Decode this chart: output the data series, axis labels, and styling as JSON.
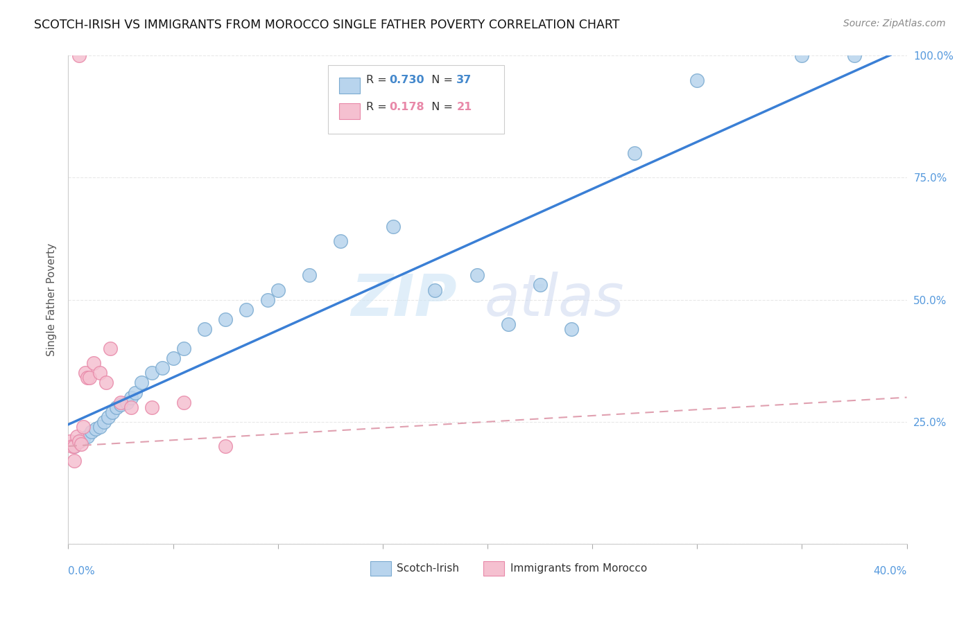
{
  "title": "SCOTCH-IRISH VS IMMIGRANTS FROM MOROCCO SINGLE FATHER POVERTY CORRELATION CHART",
  "source": "Source: ZipAtlas.com",
  "ylabel": "Single Father Poverty",
  "scotch_irish_color": "#b8d4ed",
  "scotch_irish_edge": "#7aaad0",
  "morocco_color": "#f5c0d0",
  "morocco_edge": "#e888a8",
  "blue_line_color": "#3a7fd5",
  "dashed_line_color": "#e0a0b0",
  "xlim": [
    0.0,
    40.0
  ],
  "ylim": [
    0.0,
    100.0
  ],
  "background_color": "#ffffff",
  "grid_color": "#e8e8e8",
  "scotch_irish_x": [
    0.3,
    0.5,
    0.7,
    0.9,
    1.1,
    1.3,
    1.5,
    1.7,
    1.9,
    2.1,
    2.3,
    2.5,
    2.8,
    3.0,
    3.2,
    3.5,
    4.0,
    4.5,
    5.0,
    5.5,
    6.5,
    7.5,
    8.5,
    9.5,
    10.0,
    11.5,
    13.0,
    15.5,
    17.5,
    19.5,
    21.0,
    22.5,
    24.0,
    27.0,
    30.0,
    35.0,
    37.5
  ],
  "scotch_irish_y": [
    20.0,
    21.0,
    21.5,
    22.0,
    23.0,
    23.5,
    24.0,
    25.0,
    26.0,
    27.0,
    28.0,
    28.5,
    29.0,
    30.0,
    31.0,
    33.0,
    35.0,
    36.0,
    38.0,
    40.0,
    44.0,
    46.0,
    48.0,
    50.0,
    52.0,
    55.0,
    62.0,
    65.0,
    52.0,
    55.0,
    45.0,
    53.0,
    44.0,
    80.0,
    95.0,
    100.0,
    100.0
  ],
  "morocco_x": [
    0.1,
    0.2,
    0.3,
    0.4,
    0.5,
    0.6,
    0.7,
    0.8,
    0.9,
    1.0,
    1.2,
    1.5,
    2.0,
    2.5,
    3.0,
    4.0,
    5.5,
    7.5,
    1.8,
    0.5,
    0.3
  ],
  "morocco_y": [
    21.0,
    20.0,
    20.0,
    22.0,
    21.0,
    20.5,
    24.0,
    35.0,
    34.0,
    34.0,
    37.0,
    35.0,
    40.0,
    29.0,
    28.0,
    28.0,
    29.0,
    20.0,
    33.0,
    100.0,
    17.0
  ]
}
